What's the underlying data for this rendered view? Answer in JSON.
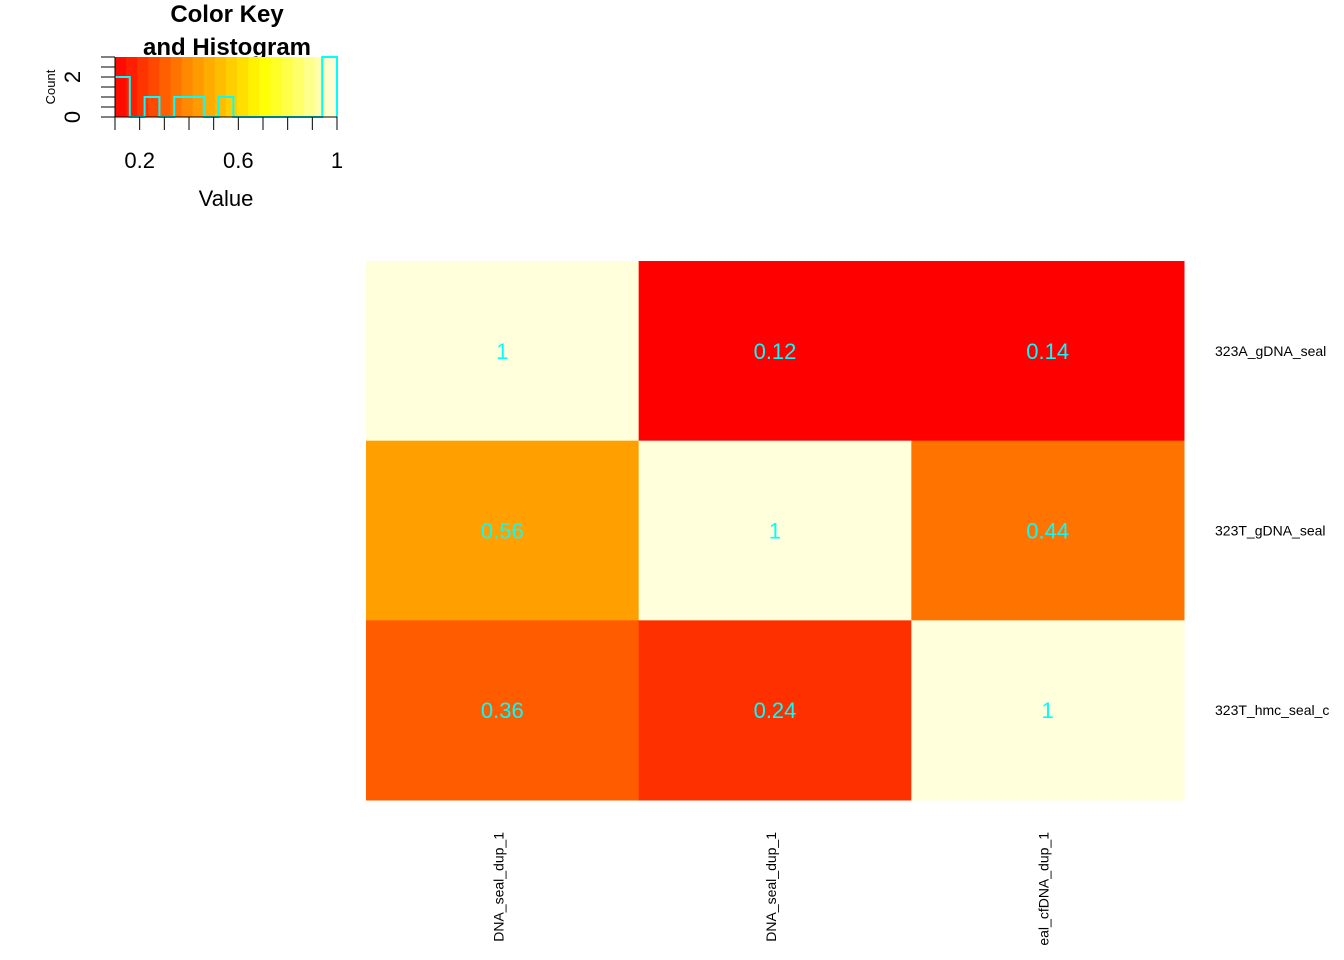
{
  "chart_data": [
    {
      "type": "histogram",
      "title": "Color Key\nand Histogram",
      "title_lines": [
        "Color Key",
        "and Histogram"
      ],
      "xlabel": "Value",
      "ylabel": "Count",
      "xlim": [
        0.1,
        1.0
      ],
      "ylim": [
        0,
        3
      ],
      "x_ticks": [
        {
          "value": 0.2,
          "label": "0.2"
        },
        {
          "value": 0.6,
          "label": "0.6"
        },
        {
          "value": 1.0,
          "label": "1"
        }
      ],
      "y_ticks": [
        {
          "value": 0,
          "label": "0"
        },
        {
          "value": 2,
          "label": "2"
        }
      ],
      "y_minor_ticks": [
        0,
        0.5,
        1,
        1.5,
        2,
        2.5,
        3
      ],
      "x_minor_ticks": [
        0.1,
        0.2,
        0.3,
        0.4,
        0.5,
        0.6,
        0.7,
        0.8,
        0.9,
        1.0
      ],
      "color_stops": [
        "#ff0000",
        "#ff8c00",
        "#ffff00",
        "#ffffe0"
      ],
      "n_color_bins": 20,
      "hist_color": "#00ffff",
      "bins": [
        {
          "x0": 0.1,
          "x1": 0.16,
          "count": 2
        },
        {
          "x0": 0.16,
          "x1": 0.22,
          "count": 0
        },
        {
          "x0": 0.22,
          "x1": 0.28,
          "count": 1
        },
        {
          "x0": 0.28,
          "x1": 0.34,
          "count": 0
        },
        {
          "x0": 0.34,
          "x1": 0.4,
          "count": 1
        },
        {
          "x0": 0.4,
          "x1": 0.46,
          "count": 1
        },
        {
          "x0": 0.46,
          "x1": 0.52,
          "count": 0
        },
        {
          "x0": 0.52,
          "x1": 0.58,
          "count": 1
        },
        {
          "x0": 0.58,
          "x1": 0.64,
          "count": 0
        },
        {
          "x0": 0.64,
          "x1": 0.7,
          "count": 0
        },
        {
          "x0": 0.7,
          "x1": 0.76,
          "count": 0
        },
        {
          "x0": 0.76,
          "x1": 0.82,
          "count": 0
        },
        {
          "x0": 0.82,
          "x1": 0.88,
          "count": 0
        },
        {
          "x0": 0.88,
          "x1": 0.94,
          "count": 0
        },
        {
          "x0": 0.94,
          "x1": 1.0,
          "count": 3
        }
      ]
    },
    {
      "type": "heatmap",
      "rows": [
        "323A_gDNA_seal",
        "323T_gDNA_seal",
        "323T_hmc_seal_c"
      ],
      "columns": [
        "DNA_seal_dup_1",
        "DNA_seal_dup_1",
        "eal_cfDNA_dup_1"
      ],
      "values": [
        [
          1,
          0.12,
          0.14
        ],
        [
          0.56,
          1,
          0.44
        ],
        [
          0.36,
          0.24,
          1
        ]
      ],
      "cell_labels": [
        [
          "1",
          "0.12",
          "0.14"
        ],
        [
          "0.56",
          "1",
          "0.44"
        ],
        [
          "0.36",
          "0.24",
          "1"
        ]
      ],
      "cell_colors": [
        [
          "#ffffdc",
          "#ff0000",
          "#ff0000"
        ],
        [
          "#ffa000",
          "#ffffdc",
          "#ff7400"
        ],
        [
          "#ff5c00",
          "#ff3000",
          "#ffffdc"
        ]
      ],
      "cell_label_color": "#00ffff"
    }
  ]
}
